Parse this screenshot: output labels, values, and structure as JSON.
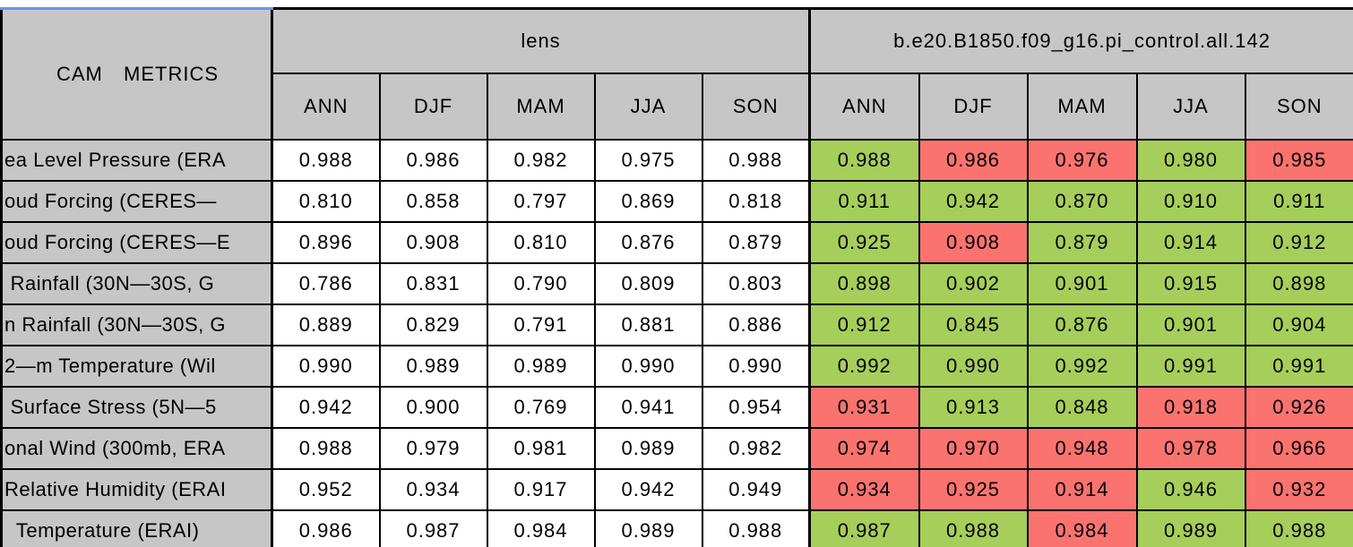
{
  "colors": {
    "blue": "#6495ED",
    "gray": "#C6C6C6",
    "green": "#A6CE5A",
    "red": "#FA736F",
    "border": "#000000"
  },
  "chart_data": {
    "type": "table",
    "title": "CAM METRICS",
    "groups": [
      "lens",
      "b.e20.B1850.f09_g16.pi_control.all.142"
    ],
    "seasons": [
      "ANN",
      "DJF",
      "MAM",
      "JJA",
      "SON"
    ],
    "rows": [
      {
        "label": "ea Level Pressure (ERA",
        "lens": [
          "0.988",
          "0.986",
          "0.982",
          "0.975",
          "0.988"
        ],
        "control": [
          "0.988",
          "0.986",
          "0.976",
          "0.980",
          "0.985"
        ],
        "control_colors": [
          "green",
          "red",
          "red",
          "green",
          "red"
        ]
      },
      {
        "label": "oud Forcing (CERES—",
        "lens": [
          "0.810",
          "0.858",
          "0.797",
          "0.869",
          "0.818"
        ],
        "control": [
          "0.911",
          "0.942",
          "0.870",
          "0.910",
          "0.911"
        ],
        "control_colors": [
          "green",
          "green",
          "green",
          "green",
          "green"
        ]
      },
      {
        "label": "oud Forcing (CERES—E",
        "lens": [
          "0.896",
          "0.908",
          "0.810",
          "0.876",
          "0.879"
        ],
        "control": [
          "0.925",
          "0.908",
          "0.879",
          "0.914",
          "0.912"
        ],
        "control_colors": [
          "green",
          "red",
          "green",
          "green",
          "green"
        ]
      },
      {
        "label": " Rainfall (30N—30S, G",
        "lens": [
          "0.786",
          "0.831",
          "0.790",
          "0.809",
          "0.803"
        ],
        "control": [
          "0.898",
          "0.902",
          "0.901",
          "0.915",
          "0.898"
        ],
        "control_colors": [
          "green",
          "green",
          "green",
          "green",
          "green"
        ]
      },
      {
        "label": "n Rainfall (30N—30S, G",
        "lens": [
          "0.889",
          "0.829",
          "0.791",
          "0.881",
          "0.886"
        ],
        "control": [
          "0.912",
          "0.845",
          "0.876",
          "0.901",
          "0.904"
        ],
        "control_colors": [
          "green",
          "green",
          "green",
          "green",
          "green"
        ]
      },
      {
        "label": "2—m Temperature (Wil",
        "lens": [
          "0.990",
          "0.989",
          "0.989",
          "0.990",
          "0.990"
        ],
        "control": [
          "0.992",
          "0.990",
          "0.992",
          "0.991",
          "0.991"
        ],
        "control_colors": [
          "green",
          "green",
          "green",
          "green",
          "green"
        ]
      },
      {
        "label": " Surface Stress (5N—5",
        "lens": [
          "0.942",
          "0.900",
          "0.769",
          "0.941",
          "0.954"
        ],
        "control": [
          "0.931",
          "0.913",
          "0.848",
          "0.918",
          "0.926"
        ],
        "control_colors": [
          "red",
          "green",
          "green",
          "red",
          "red"
        ]
      },
      {
        "label": "onal Wind (300mb, ERA",
        "lens": [
          "0.988",
          "0.979",
          "0.981",
          "0.989",
          "0.982"
        ],
        "control": [
          "0.974",
          "0.970",
          "0.948",
          "0.978",
          "0.966"
        ],
        "control_colors": [
          "red",
          "red",
          "red",
          "red",
          "red"
        ]
      },
      {
        "label": "Relative Humidity (ERAI",
        "lens": [
          "0.952",
          "0.934",
          "0.917",
          "0.942",
          "0.949"
        ],
        "control": [
          "0.934",
          "0.925",
          "0.914",
          "0.946",
          "0.932"
        ],
        "control_colors": [
          "red",
          "red",
          "red",
          "green",
          "red"
        ]
      },
      {
        "label": "  Temperature (ERAI)",
        "lens": [
          "0.986",
          "0.987",
          "0.984",
          "0.989",
          "0.988"
        ],
        "control": [
          "0.987",
          "0.988",
          "0.984",
          "0.989",
          "0.988"
        ],
        "control_colors": [
          "green",
          "green",
          "red",
          "green",
          "green"
        ]
      }
    ]
  }
}
